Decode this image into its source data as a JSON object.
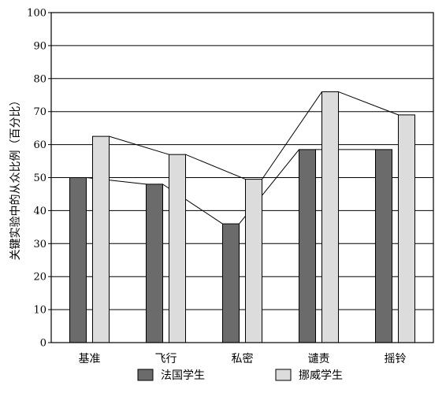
{
  "chart_data": {
    "type": "bar",
    "title": "",
    "xlabel": "",
    "ylabel": "关键实验中的从众比例（百分比）",
    "ylim": [
      0,
      100
    ],
    "yticks": [
      0,
      10,
      20,
      30,
      40,
      50,
      60,
      70,
      80,
      90,
      100
    ],
    "grid": true,
    "legend_position": "bottom",
    "categories": [
      "基准",
      "飞行",
      "私密",
      "谴责",
      "摇铃"
    ],
    "series": [
      {
        "name": "法国学生",
        "color": "#6b6b6b",
        "values": [
          50,
          48,
          36,
          58.5,
          58.5
        ]
      },
      {
        "name": "挪威学生",
        "color": "#dcdcdc",
        "values": [
          62.5,
          57,
          49.5,
          76,
          69
        ]
      }
    ]
  }
}
